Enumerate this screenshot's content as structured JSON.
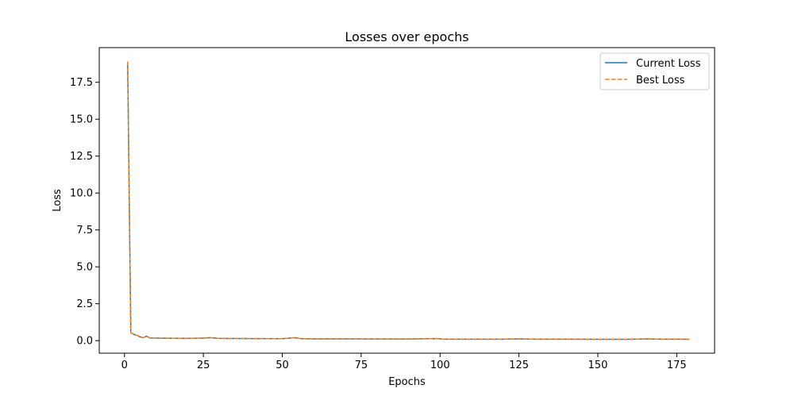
{
  "chart_data": {
    "type": "line",
    "title": "Losses over epochs",
    "xlabel": "Epochs",
    "ylabel": "Loss",
    "xlim": [
      -8,
      187
    ],
    "ylim": [
      -0.85,
      19.85
    ],
    "x_ticks": [
      0,
      25,
      50,
      75,
      100,
      125,
      150,
      175
    ],
    "x_tick_labels": [
      "0",
      "25",
      "50",
      "75",
      "100",
      "125",
      "150",
      "175"
    ],
    "y_ticks": [
      0,
      2.5,
      5,
      7.5,
      10,
      12.5,
      15,
      17.5
    ],
    "y_tick_labels": [
      "0.0",
      "2.5",
      "5.0",
      "7.5",
      "10.0",
      "12.5",
      "15.0",
      "17.5"
    ],
    "grid": false,
    "legend_position": "top-right",
    "series": [
      {
        "name": "Current Loss",
        "color": "#1f77b4",
        "style": "solid",
        "x": [
          1,
          2,
          3,
          4,
          5,
          6,
          7,
          8,
          10,
          15,
          20,
          25,
          27,
          30,
          40,
          50,
          54,
          56,
          60,
          70,
          80,
          90,
          99,
          101,
          110,
          120,
          125,
          130,
          140,
          150,
          160,
          165,
          170,
          175,
          179
        ],
        "y": [
          18.9,
          0.55,
          0.42,
          0.35,
          0.25,
          0.2,
          0.3,
          0.18,
          0.17,
          0.16,
          0.15,
          0.17,
          0.2,
          0.15,
          0.14,
          0.13,
          0.2,
          0.13,
          0.12,
          0.12,
          0.11,
          0.11,
          0.14,
          0.1,
          0.1,
          0.1,
          0.12,
          0.1,
          0.1,
          0.09,
          0.09,
          0.12,
          0.1,
          0.1,
          0.09
        ]
      },
      {
        "name": "Best Loss",
        "color": "#ff7f0e",
        "style": "dashed",
        "x": [
          1,
          2,
          3,
          4,
          5,
          6,
          7,
          8,
          10,
          15,
          20,
          25,
          27,
          30,
          40,
          50,
          54,
          56,
          60,
          70,
          80,
          90,
          99,
          101,
          110,
          120,
          125,
          130,
          140,
          150,
          160,
          165,
          170,
          175,
          179
        ],
        "y": [
          18.9,
          0.55,
          0.42,
          0.35,
          0.25,
          0.2,
          0.3,
          0.18,
          0.17,
          0.16,
          0.15,
          0.17,
          0.2,
          0.15,
          0.14,
          0.13,
          0.2,
          0.13,
          0.12,
          0.12,
          0.11,
          0.11,
          0.14,
          0.1,
          0.1,
          0.1,
          0.12,
          0.1,
          0.1,
          0.09,
          0.09,
          0.12,
          0.1,
          0.1,
          0.09
        ]
      }
    ]
  }
}
